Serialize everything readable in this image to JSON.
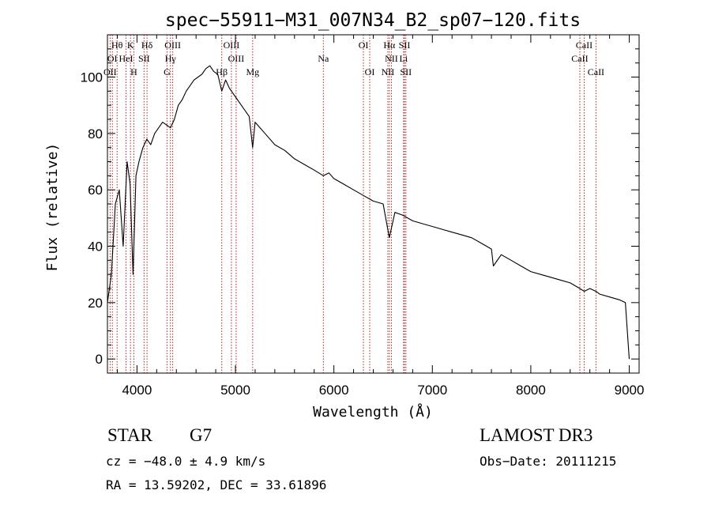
{
  "chart_data": {
    "type": "line",
    "title": "spec−55911−M31_007N34_B2_sp07−120.fits",
    "xlabel": "Wavelength (Å)",
    "ylabel": "Flux (relative)",
    "xlim": [
      3700,
      9100
    ],
    "ylim": [
      -5,
      115
    ],
    "xticks": [
      4000,
      5000,
      6000,
      7000,
      8000,
      9000
    ],
    "yticks": [
      0,
      20,
      40,
      60,
      80,
      100
    ],
    "grid": false,
    "series": [
      {
        "name": "flux",
        "x": [
          3700,
          3740,
          3780,
          3820,
          3860,
          3900,
          3930,
          3960,
          3990,
          4020,
          4060,
          4100,
          4140,
          4180,
          4220,
          4260,
          4300,
          4340,
          4380,
          4420,
          4460,
          4500,
          4540,
          4580,
          4620,
          4660,
          4700,
          4740,
          4780,
          4820,
          4861,
          4900,
          4940,
          4980,
          5020,
          5060,
          5100,
          5140,
          5175,
          5200,
          5250,
          5300,
          5400,
          5500,
          5600,
          5700,
          5800,
          5893,
          5950,
          6000,
          6100,
          6200,
          6300,
          6400,
          6500,
          6563,
          6620,
          6700,
          6800,
          6900,
          7000,
          7100,
          7200,
          7300,
          7400,
          7500,
          7600,
          7620,
          7700,
          7800,
          7900,
          8000,
          8100,
          8200,
          8300,
          8400,
          8498,
          8542,
          8600,
          8662,
          8700,
          8800,
          8900,
          8960,
          9000
        ],
        "values": [
          20,
          30,
          55,
          60,
          40,
          70,
          62,
          30,
          65,
          70,
          75,
          78,
          76,
          80,
          82,
          84,
          83,
          82,
          85,
          90,
          92,
          95,
          97,
          99,
          100,
          101,
          103,
          104,
          102,
          101,
          95,
          99,
          96,
          94,
          92,
          90,
          88,
          86,
          75,
          84,
          82,
          80,
          76,
          74,
          71,
          69,
          67,
          65,
          66,
          64,
          62,
          60,
          58,
          56,
          55,
          43,
          52,
          51,
          49,
          48,
          47,
          46,
          45,
          44,
          43,
          41,
          39,
          33,
          37,
          35,
          33,
          31,
          30,
          29,
          28,
          27,
          25,
          24,
          25,
          24,
          23,
          22,
          21,
          20,
          0
        ]
      }
    ],
    "lines": [
      {
        "label": "Hθ",
        "x": 3798,
        "row": 0
      },
      {
        "label": "K",
        "x": 3934,
        "row": 0
      },
      {
        "label": "Hδ",
        "x": 4102,
        "row": 0
      },
      {
        "label": "OIII",
        "x": 4363,
        "row": 0
      },
      {
        "label": "OIII",
        "x": 4959,
        "row": 0
      },
      {
        "label": "OI",
        "x": 6300,
        "row": 0
      },
      {
        "label": "Hα",
        "x": 6563,
        "row": 0
      },
      {
        "label": "SII",
        "x": 6717,
        "row": 0
      },
      {
        "label": "CaII",
        "x": 8542,
        "row": 0
      },
      {
        "label": "OI",
        "x": 3750,
        "row": 1
      },
      {
        "label": "HeI",
        "x": 3889,
        "row": 1
      },
      {
        "label": "SII",
        "x": 4072,
        "row": 1
      },
      {
        "label": "Hγ",
        "x": 4340,
        "row": 1
      },
      {
        "label": "OIII",
        "x": 5007,
        "row": 1
      },
      {
        "label": "Na",
        "x": 5893,
        "row": 1
      },
      {
        "label": "NII",
        "x": 6584,
        "row": 1
      },
      {
        "label": "Li",
        "x": 6708,
        "row": 1
      },
      {
        "label": "CaII",
        "x": 8498,
        "row": 1
      },
      {
        "label": "OII",
        "x": 3727,
        "row": 2
      },
      {
        "label": "H",
        "x": 3968,
        "row": 2
      },
      {
        "label": "G",
        "x": 4305,
        "row": 2
      },
      {
        "label": "Hβ",
        "x": 4861,
        "row": 2
      },
      {
        "label": "Mg",
        "x": 5175,
        "row": 2
      },
      {
        "label": "OI",
        "x": 6364,
        "row": 2
      },
      {
        "label": "NII",
        "x": 6548,
        "row": 2
      },
      {
        "label": "SII",
        "x": 6731,
        "row": 2
      },
      {
        "label": "CaII",
        "x": 8662,
        "row": 2
      }
    ]
  },
  "info": {
    "star_type": "STAR",
    "subclass": "G7",
    "survey": "LAMOST DR3",
    "cz": "cz = −48.0 ± 4.9 km/s",
    "obs_date": "Obs−Date: 20111215",
    "radec": "RA =  13.59202, DEC =  33.61896"
  },
  "colors": {
    "axis": "#000000",
    "line_marker": "#b22222",
    "spectrum": "#000000"
  }
}
